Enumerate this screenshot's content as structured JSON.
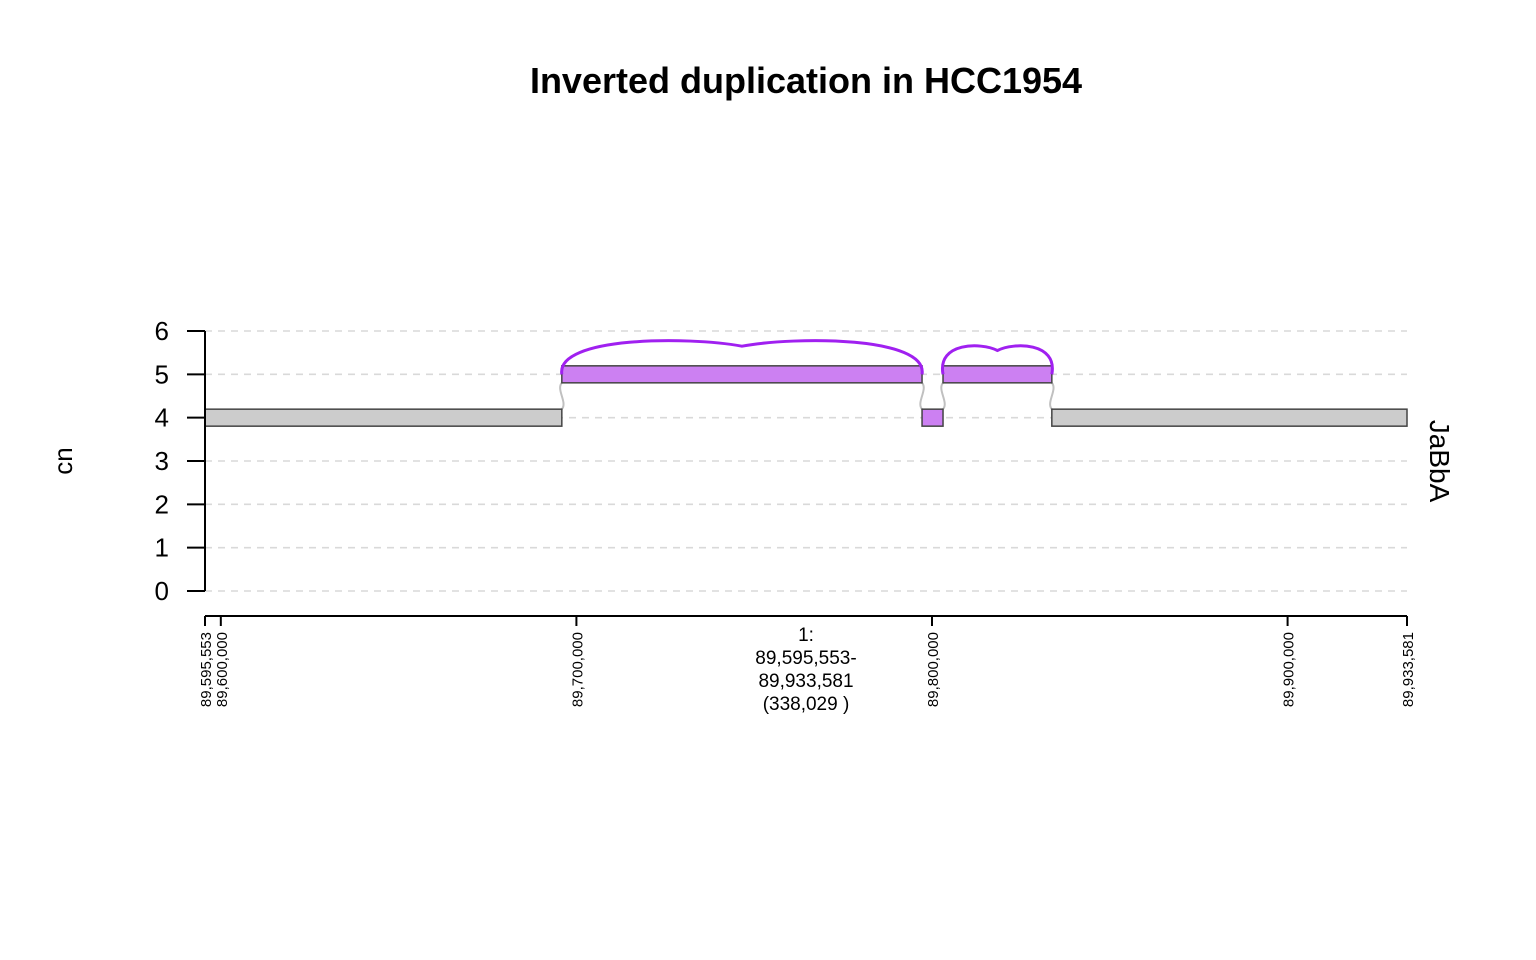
{
  "chart_data": {
    "type": "genome-track",
    "title": "Inverted duplication in HCC1954",
    "ylabel": "cn",
    "track_label": "JaBbA",
    "ylim": [
      0,
      6
    ],
    "yticks": [
      "0",
      "1",
      "2",
      "3",
      "4",
      "5",
      "6"
    ],
    "grid": "horizontal dashed",
    "xlim": [
      89595553,
      89933581
    ],
    "xticks": [
      {
        "value": 89595553,
        "label": "89,595,553"
      },
      {
        "value": 89600000,
        "label": "89,600,000"
      },
      {
        "value": 89700000,
        "label": "89,700,000"
      },
      {
        "value": 89800000,
        "label": "89,800,000"
      },
      {
        "value": 89900000,
        "label": "89,900,000"
      },
      {
        "value": 89933581,
        "label": "89,933,581"
      }
    ],
    "region_label": [
      "1:",
      "89,595,553-",
      "89,933,581",
      "(338,029 )"
    ],
    "colors": {
      "normal_fill": "#cccccc",
      "dup_fill": "#cc80f2",
      "segment_border": "#444444",
      "alt_edge": "#a020f0",
      "ref_edge": "#c0c0c0",
      "grid": "#d9d9d9"
    },
    "segments": [
      {
        "start": 89595553,
        "end": 89695900,
        "cn": 4,
        "color": "normal"
      },
      {
        "start": 89695900,
        "end": 89797200,
        "cn": 5,
        "color": "dup"
      },
      {
        "start": 89797200,
        "end": 89803100,
        "cn": 4,
        "color": "dup"
      },
      {
        "start": 89803100,
        "end": 89833700,
        "cn": 5,
        "color": "dup"
      },
      {
        "start": 89833700,
        "end": 89933581,
        "cn": 4,
        "color": "normal"
      }
    ],
    "alt_edges": [
      {
        "from": 89695900,
        "to": 89797200,
        "from_cn": 5,
        "to_cn": 5,
        "peak_cn": 5.65
      },
      {
        "from": 89803100,
        "to": 89833700,
        "from_cn": 5,
        "to_cn": 5,
        "peak_cn": 5.55
      }
    ],
    "ref_edges": [
      {
        "pos": 89695900,
        "from_cn": 4,
        "to_cn": 5
      },
      {
        "pos": 89797200,
        "from_cn": 5,
        "to_cn": 4
      },
      {
        "pos": 89803100,
        "from_cn": 4,
        "to_cn": 5
      },
      {
        "pos": 89833700,
        "from_cn": 5,
        "to_cn": 4
      }
    ]
  }
}
